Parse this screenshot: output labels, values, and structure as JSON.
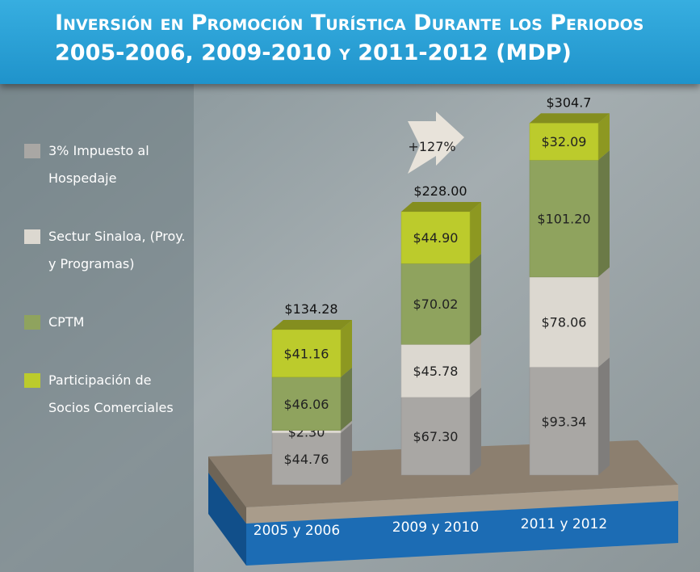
{
  "chart_data": {
    "type": "stacked_bar_3d",
    "title": "Inversión en Promoción Turística Durante los Periodos 2005-2006, 2009-2010 y 2011-2012 (MDP)",
    "annotation": "+127%",
    "categories": [
      "2005 y 2006",
      "2009 y 2010",
      "2011 y 2012"
    ],
    "series": [
      {
        "name": "3% Impuesto al Hospedaje",
        "color": "#a9a7a4",
        "values": [
          44.76,
          67.3,
          93.34
        ],
        "value_labels": [
          "$44.76",
          "$67.30",
          "$93.34"
        ]
      },
      {
        "name": "Sectur Sinaloa, (Proy. y Programas)",
        "color": "#dcd8d0",
        "values": [
          2.3,
          45.78,
          78.06
        ],
        "value_labels": [
          "$2.30",
          "$45.78",
          "$78.06"
        ]
      },
      {
        "name": "CPTM",
        "color": "#8fa35e",
        "values": [
          46.06,
          70.02,
          101.2
        ],
        "value_labels": [
          "$46.06",
          "$70.02",
          "$101.20"
        ]
      },
      {
        "name": "Participación de Socios Comerciales",
        "color": "#bccb2c",
        "values": [
          41.16,
          44.9,
          32.09
        ],
        "value_labels": [
          "$41.16",
          "$44.90",
          "$32.09"
        ]
      }
    ],
    "totals": [
      134.28,
      228.0,
      304.7
    ],
    "total_labels": [
      "$134.28",
      "$228.00",
      "$304.7"
    ]
  }
}
